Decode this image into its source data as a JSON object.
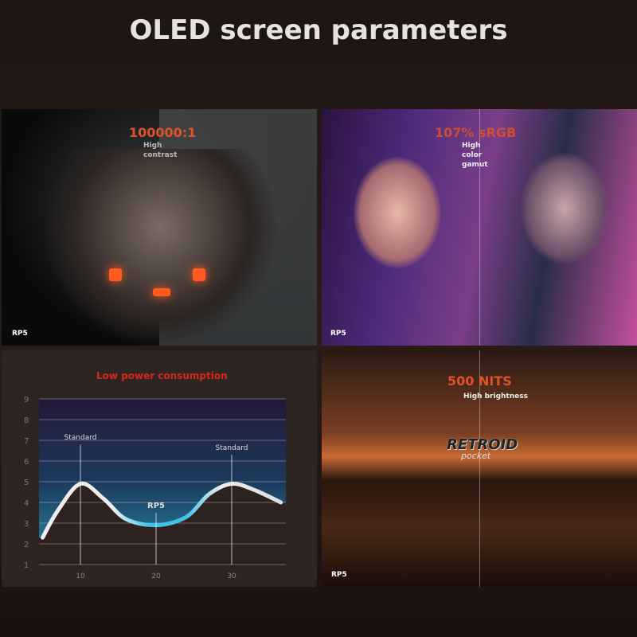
{
  "title": "OLED screen parameters",
  "panels": {
    "contrast": {
      "headline": "100000:1",
      "caption": [
        "High",
        "contrast"
      ],
      "tag": "RP5"
    },
    "color": {
      "headline": "107% sRGB",
      "caption": [
        "High",
        "color",
        "gamut"
      ],
      "tag": "RP5"
    },
    "power": {
      "headline": "Low power consumption"
    },
    "brightness": {
      "headline": "500 NITS",
      "caption": "High brightness",
      "tag": "RP5",
      "logo": "RETROID",
      "logo_sub": "pocket"
    }
  },
  "chart_data": {
    "type": "line",
    "title": "Low power consumption",
    "ylim": [
      1,
      9
    ],
    "xlim": [
      5,
      36.5
    ],
    "yticks": [
      1,
      2,
      3,
      4,
      5,
      6,
      7,
      8,
      9
    ],
    "xticks": [
      10,
      20,
      30
    ],
    "grid": true,
    "x": [
      5,
      7,
      10,
      13,
      16,
      20,
      24,
      27,
      30,
      33,
      36.5
    ],
    "y": [
      2.3,
      3.6,
      4.9,
      4.2,
      3.2,
      2.9,
      3.3,
      4.4,
      4.9,
      4.6,
      4.0
    ],
    "annotations": [
      {
        "x": 10,
        "label": "Standard"
      },
      {
        "x": 20,
        "label": "RP5"
      },
      {
        "x": 30,
        "label": "Standard"
      }
    ],
    "colors": {
      "standard": "#e8e0dc",
      "rp5": "#3fc2e8",
      "headline": "#d8281c"
    }
  }
}
